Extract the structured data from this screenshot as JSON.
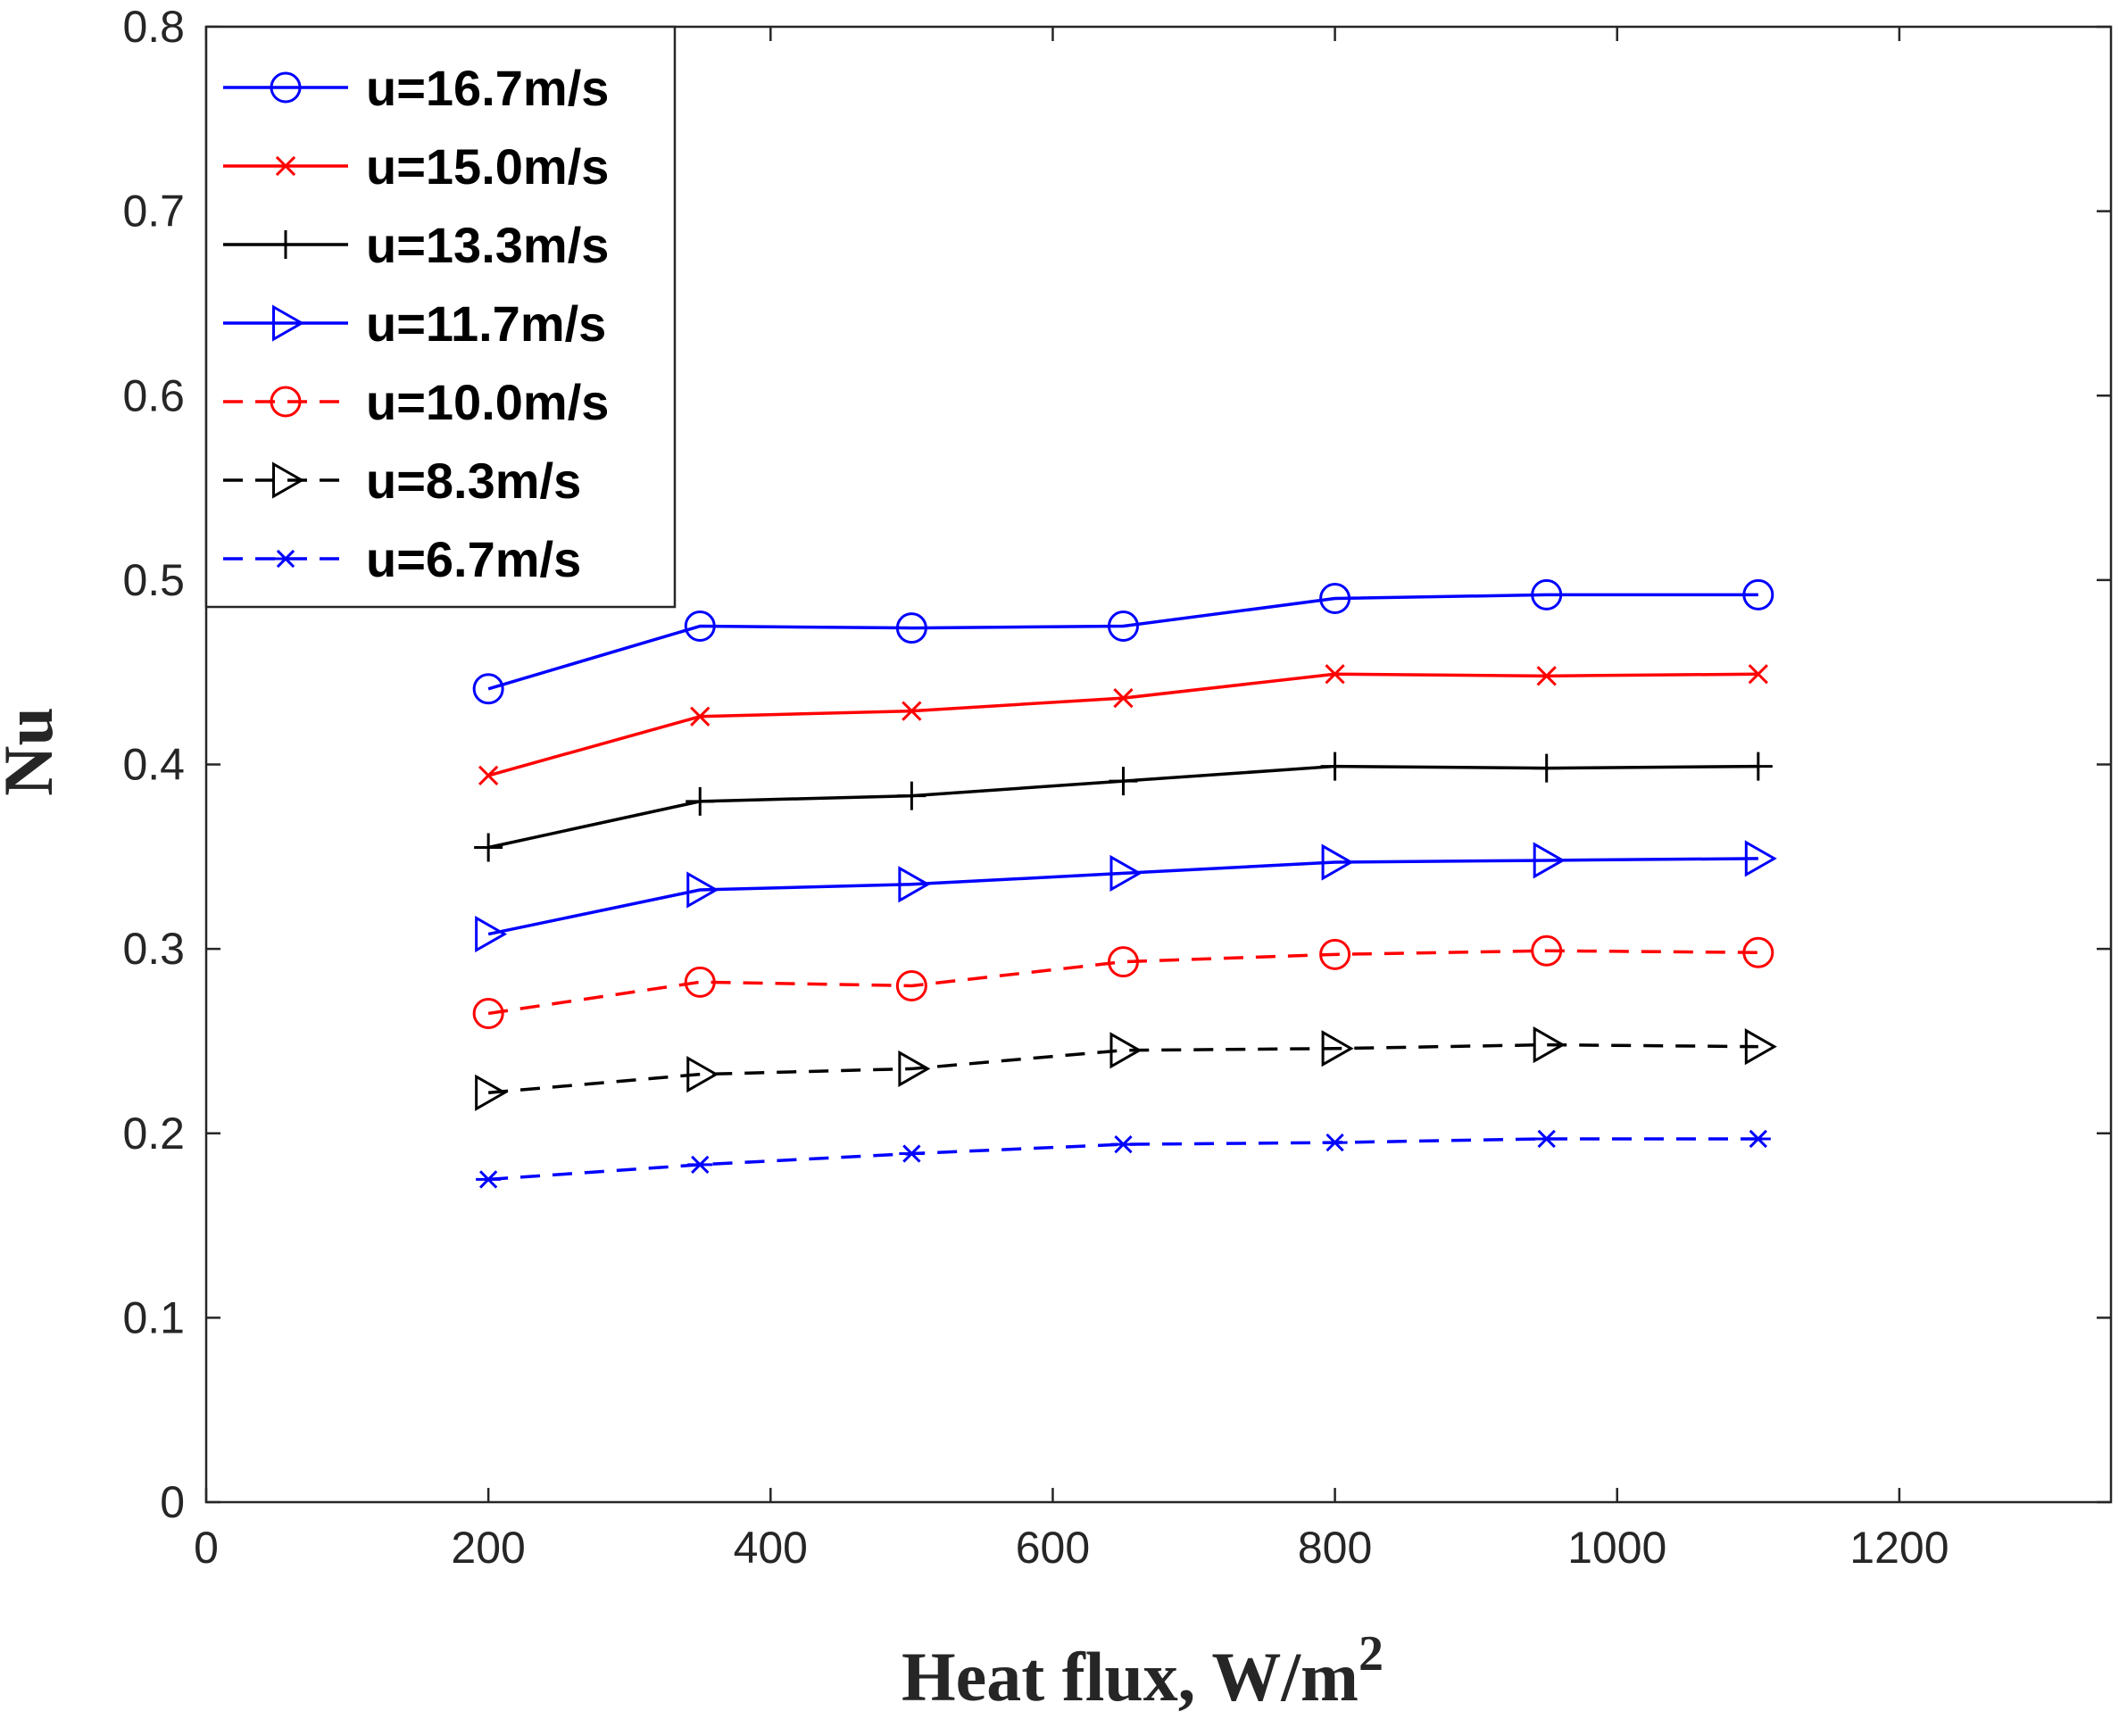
{
  "chart_data": {
    "type": "line",
    "title": "",
    "xlabel": "Heat flux, W/m",
    "xlabel_superscript": "2",
    "ylabel": "Nu",
    "xlim": [
      0,
      1350
    ],
    "ylim": [
      0,
      0.8
    ],
    "x_ticks": [
      0,
      200,
      400,
      600,
      800,
      1000,
      1200
    ],
    "x_tick_labels": [
      "0",
      "200",
      "400",
      "600",
      "800",
      "1000",
      "1200"
    ],
    "y_ticks": [
      0,
      0.1,
      0.2,
      0.3,
      0.4,
      0.5,
      0.6,
      0.7,
      0.8
    ],
    "y_tick_labels": [
      "0",
      "0.1",
      "0.2",
      "0.3",
      "0.4",
      "0.5",
      "0.6",
      "0.7",
      "0.8"
    ],
    "grid": false,
    "legend_position": "top-left",
    "x": [
      200,
      350,
      500,
      650,
      800,
      950,
      1100
    ],
    "series": [
      {
        "name": "u=16.7m/s",
        "color": "#0000ff",
        "dash": "solid",
        "marker": "circle",
        "values": [
          0.441,
          0.475,
          0.474,
          0.475,
          0.49,
          0.492,
          0.492
        ]
      },
      {
        "name": "u=15.0m/s",
        "color": "#ff0000",
        "dash": "solid",
        "marker": "x",
        "values": [
          0.394,
          0.426,
          0.429,
          0.436,
          0.449,
          0.448,
          0.449
        ]
      },
      {
        "name": "u=13.3m/s",
        "color": "#000000",
        "dash": "solid",
        "marker": "plus",
        "values": [
          0.355,
          0.38,
          0.383,
          0.391,
          0.399,
          0.398,
          0.399
        ]
      },
      {
        "name": "u=11.7m/s",
        "color": "#0000ff",
        "dash": "solid",
        "marker": "triangle-right",
        "values": [
          0.308,
          0.332,
          0.335,
          0.341,
          0.347,
          0.348,
          0.349
        ]
      },
      {
        "name": "u=10.0m/s",
        "color": "#ff0000",
        "dash": "dashed",
        "marker": "circle",
        "values": [
          0.265,
          0.282,
          0.28,
          0.293,
          0.297,
          0.299,
          0.298
        ]
      },
      {
        "name": "u=8.3m/s",
        "color": "#000000",
        "dash": "dashed",
        "marker": "triangle-right",
        "values": [
          0.222,
          0.232,
          0.235,
          0.245,
          0.246,
          0.248,
          0.247
        ]
      },
      {
        "name": "u=6.7m/s",
        "color": "#0000ff",
        "dash": "dashed",
        "marker": "asterisk",
        "values": [
          0.175,
          0.183,
          0.189,
          0.194,
          0.195,
          0.197,
          0.197
        ]
      }
    ]
  }
}
